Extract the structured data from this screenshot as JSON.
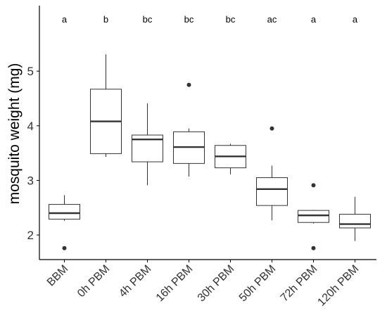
{
  "chart_data": {
    "type": "boxplot",
    "ylabel": "mosquito weight (mg)",
    "ylim": [
      1.55,
      6.2
    ],
    "yticks": [
      2,
      3,
      4,
      5
    ],
    "categories": [
      "BBM",
      "0h PBM",
      "4h PBM",
      "16h PBM",
      "30h PBM",
      "50h PBM",
      "72h PBM",
      "120h PBM"
    ],
    "significance_letters": [
      "a",
      "b",
      "bc",
      "bc",
      "bc",
      "ac",
      "a",
      "a"
    ],
    "boxes": [
      {
        "category": "BBM",
        "whisker_low": 2.26,
        "q1": 2.29,
        "median": 2.4,
        "q3": 2.56,
        "whisker_high": 2.73,
        "outliers": [
          1.76
        ]
      },
      {
        "category": "0h PBM",
        "whisker_low": 3.43,
        "q1": 3.49,
        "median": 4.08,
        "q3": 4.67,
        "whisker_high": 5.31,
        "outliers": []
      },
      {
        "category": "4h PBM",
        "whisker_low": 2.91,
        "q1": 3.34,
        "median": 3.75,
        "q3": 3.83,
        "whisker_high": 4.41,
        "outliers": []
      },
      {
        "category": "16h PBM",
        "whisker_low": 3.07,
        "q1": 3.31,
        "median": 3.61,
        "q3": 3.89,
        "whisker_high": 3.95,
        "outliers": [
          4.75
        ]
      },
      {
        "category": "30h PBM",
        "whisker_low": 3.11,
        "q1": 3.23,
        "median": 3.44,
        "q3": 3.64,
        "whisker_high": 3.67,
        "outliers": []
      },
      {
        "category": "50h PBM",
        "whisker_low": 2.27,
        "q1": 2.54,
        "median": 2.84,
        "q3": 3.05,
        "whisker_high": 3.27,
        "outliers": [
          3.95
        ]
      },
      {
        "category": "72h PBM",
        "whisker_low": 2.21,
        "q1": 2.23,
        "median": 2.36,
        "q3": 2.45,
        "whisker_high": 2.46,
        "outliers": [
          2.91,
          1.76
        ]
      },
      {
        "category": "120h PBM",
        "whisker_low": 1.89,
        "q1": 2.13,
        "median": 2.2,
        "q3": 2.38,
        "whisker_high": 2.7,
        "outliers": []
      }
    ],
    "grid": false,
    "legend": "none",
    "colors": {
      "box_stroke": "#333333",
      "fill": "#ffffff",
      "axis": "#000000",
      "text": "#000000"
    }
  }
}
